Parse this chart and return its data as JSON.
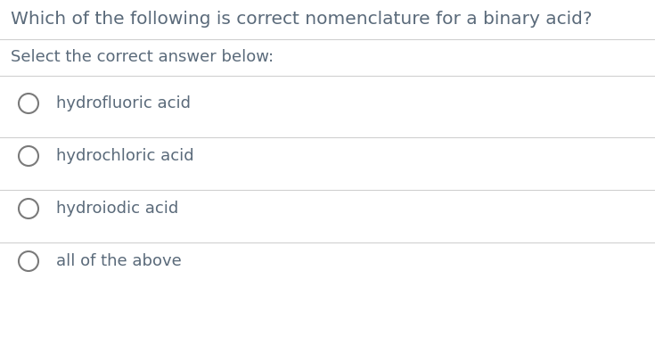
{
  "title": "Which of the following is correct nomenclature for a binary acid?",
  "subtitle": "Select the correct answer below:",
  "options": [
    "hydrofluoric acid",
    "hydrochloric acid",
    "hydroiodic acid",
    "all of the above"
  ],
  "title_color": "#5a6a7a",
  "subtitle_color": "#5a6a7a",
  "option_color": "#5a6a7a",
  "circle_edgecolor": "#7a7a7a",
  "line_color": "#d0d0d0",
  "background_color": "#ffffff",
  "title_fontsize": 14.5,
  "subtitle_fontsize": 13.0,
  "option_fontsize": 13.0
}
